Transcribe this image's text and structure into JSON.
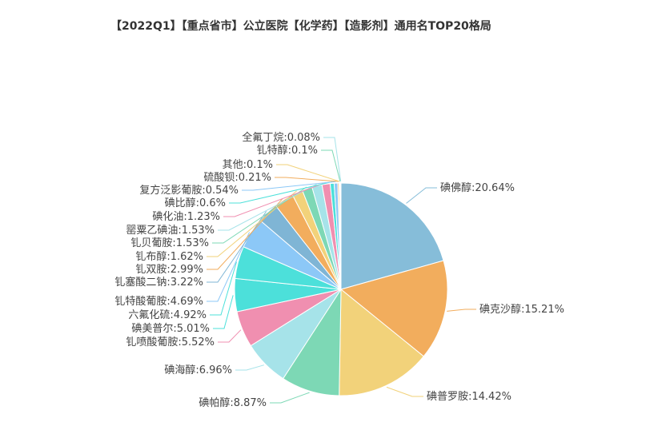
{
  "chart_data": {
    "type": "pie",
    "title": "【2022Q1】【重点省市】公立医院【化学药】【造影剂】通用名TOP20格局",
    "slices": [
      {
        "name": "碘佛醇",
        "value": 20.64,
        "label": "碘佛醇:20.64%",
        "color": "#86bdd9"
      },
      {
        "name": "碘克沙醇",
        "value": 15.21,
        "label": "碘克沙醇:15.21%",
        "color": "#f2ad5d"
      },
      {
        "name": "碘普罗胺",
        "value": 14.42,
        "label": "碘普罗胺:14.42%",
        "color": "#f2d27a"
      },
      {
        "name": "碘帕醇",
        "value": 8.87,
        "label": "碘帕醇:8.87%",
        "color": "#7dd8b5"
      },
      {
        "name": "碘海醇",
        "value": 6.96,
        "label": "碘海醇:6.96%",
        "color": "#a6e3e9"
      },
      {
        "name": "钆喷酸葡胺",
        "value": 5.52,
        "label": "钆喷酸葡胺:5.52%",
        "color": "#f08fb0"
      },
      {
        "name": "碘美普尔",
        "value": 5.01,
        "label": "碘美普尔:5.01%",
        "color": "#4ce0da"
      },
      {
        "name": "六氟化硫",
        "value": 4.92,
        "label": "六氟化硫:4.92%",
        "color": "#4ce0da"
      },
      {
        "name": "钆特酸葡胺",
        "value": 4.69,
        "label": "钆特酸葡胺:4.69%",
        "color": "#8cc8f7"
      },
      {
        "name": "钆塞酸二钠",
        "value": 3.22,
        "label": "钆塞酸二钠:3.22%",
        "color": "#7fb5d5"
      },
      {
        "name": "钆双胺",
        "value": 2.99,
        "label": "钆双胺:2.99%",
        "color": "#f2ad5d"
      },
      {
        "name": "钆布醇",
        "value": 1.62,
        "label": "钆布醇:1.62%",
        "color": "#f2d27a"
      },
      {
        "name": "钆贝葡胺",
        "value": 1.53,
        "label": "钆贝葡胺:1.53%",
        "color": "#7dd8b5"
      },
      {
        "name": "罂粟乙碘油",
        "value": 1.53,
        "label": "罂粟乙碘油:1.53%",
        "color": "#a6e3e9"
      },
      {
        "name": "碘化油",
        "value": 1.23,
        "label": "碘化油:1.23%",
        "color": "#f08fb0"
      },
      {
        "name": "碘比醇",
        "value": 0.6,
        "label": "碘比醇:0.6%",
        "color": "#4ce0da"
      },
      {
        "name": "复方泛影葡胺",
        "value": 0.54,
        "label": "复方泛影葡胺:0.54%",
        "color": "#8cc8f7"
      },
      {
        "name": "硫酸钡",
        "value": 0.21,
        "label": "硫酸钡:0.21%",
        "color": "#f2ad5d"
      },
      {
        "name": "其他",
        "value": 0.1,
        "label": "其他:0.1%",
        "color": "#f2d27a"
      },
      {
        "name": "钆特醇",
        "value": 0.1,
        "label": "钆特醇:0.1%",
        "color": "#7dd8b5"
      },
      {
        "name": "全氟丁烷",
        "value": 0.08,
        "label": "全氟丁烷:0.08%",
        "color": "#a6e3e9"
      }
    ]
  }
}
